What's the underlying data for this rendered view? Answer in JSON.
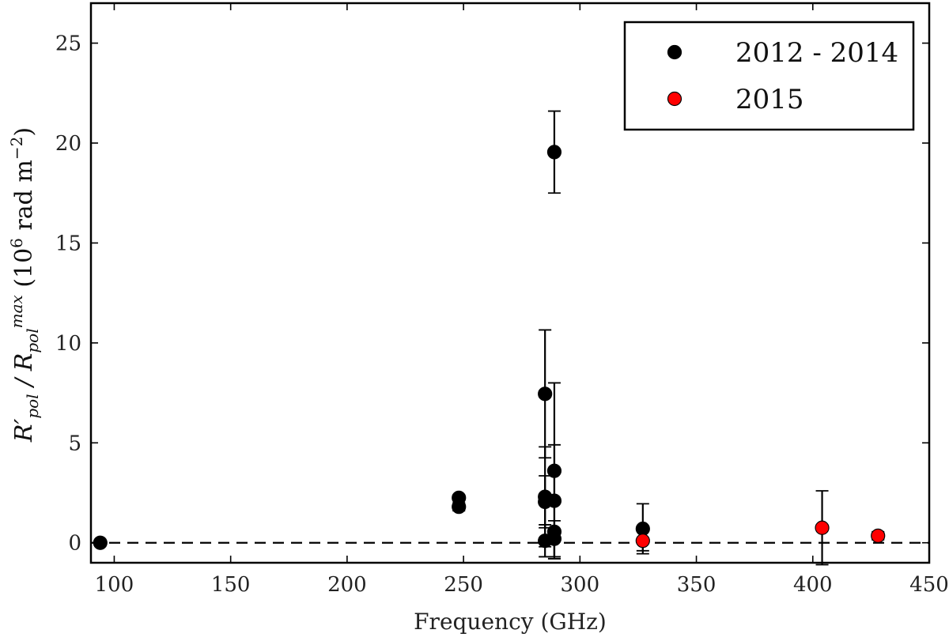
{
  "chart_data": {
    "type": "scatter",
    "title": "",
    "xlabel": "Frequency (GHz)",
    "ylabel": "R′pol / Rpol^max (10^6 rad m^−2)",
    "xlim": [
      90,
      450
    ],
    "ylim": [
      -1,
      27
    ],
    "xticks": [
      100,
      150,
      200,
      250,
      300,
      350,
      400,
      450
    ],
    "yticks": [
      0,
      5,
      10,
      15,
      20,
      25
    ],
    "grid": false,
    "legend_position": "top-right",
    "reference_line": {
      "y": 0,
      "style": "dashed"
    },
    "series": [
      {
        "name": "2012 - 2014",
        "color": "#000000",
        "points": [
          {
            "x": 94,
            "y": 0.0,
            "err": 0.0
          },
          {
            "x": 248,
            "y": 2.25,
            "err": 0.0
          },
          {
            "x": 248,
            "y": 1.8,
            "err": 0.2
          },
          {
            "x": 285,
            "y": 7.45,
            "err": 3.2
          },
          {
            "x": 285,
            "y": 2.3,
            "err": 2.5
          },
          {
            "x": 285,
            "y": 2.05,
            "err": 1.3
          },
          {
            "x": 285,
            "y": 0.1,
            "err": 0.8
          },
          {
            "x": 289,
            "y": 19.55,
            "err": 2.05
          },
          {
            "x": 289,
            "y": 3.6,
            "err": 4.4
          },
          {
            "x": 289,
            "y": 2.1,
            "err": 2.8
          },
          {
            "x": 289,
            "y": 0.55,
            "err": 0.0
          },
          {
            "x": 289,
            "y": 0.2,
            "err": 0.9
          },
          {
            "x": 327,
            "y": 0.7,
            "err": 1.25
          }
        ]
      },
      {
        "name": "2015",
        "color": "#ff0000",
        "points": [
          {
            "x": 327,
            "y": 0.1,
            "err": 0.5
          },
          {
            "x": 404,
            "y": 0.75,
            "err": 1.85
          },
          {
            "x": 428,
            "y": 0.35,
            "err": 0.2
          }
        ]
      }
    ]
  }
}
